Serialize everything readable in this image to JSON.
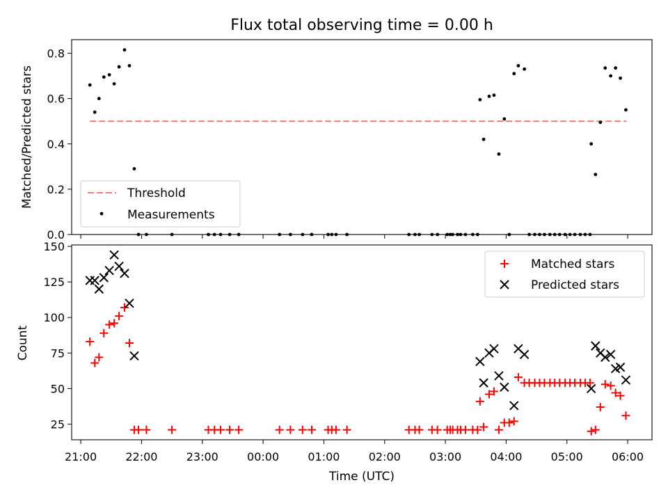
{
  "title": "Flux total observing time = 0.00 h",
  "xlabel": "Time (UTC)",
  "colors": {
    "threshold": "#f47a7a",
    "measurements": "#000000",
    "matched": "#ff0000",
    "predicted": "#000000"
  },
  "chart_data": [
    {
      "type": "scatter",
      "ylabel": "Matched/Predicted stars",
      "ylim": [
        0,
        0.86
      ],
      "yticks": [
        0.0,
        0.2,
        0.4,
        0.6,
        0.8
      ],
      "ytick_labels": [
        "0.0",
        "0.2",
        "0.4",
        "0.6",
        "0.8"
      ],
      "xlim": [
        20.85,
        30.4
      ],
      "legend_position": "lower-left",
      "threshold": {
        "name": "Threshold",
        "y": 0.5,
        "x_range": [
          21.15,
          29.98
        ],
        "style": "dashed"
      },
      "series": [
        {
          "name": "Measurements",
          "marker": "dot",
          "points": [
            [
              21.15,
              0.66
            ],
            [
              21.23,
              0.54
            ],
            [
              21.3,
              0.6
            ],
            [
              21.38,
              0.695
            ],
            [
              21.47,
              0.705
            ],
            [
              21.55,
              0.665
            ],
            [
              21.63,
              0.74
            ],
            [
              21.72,
              0.815
            ],
            [
              21.8,
              0.745
            ],
            [
              21.88,
              0.29
            ],
            [
              21.95,
              0.0
            ],
            [
              22.08,
              0.0
            ],
            [
              22.5,
              0.0
            ],
            [
              23.1,
              0.0
            ],
            [
              23.2,
              0.0
            ],
            [
              23.3,
              0.0
            ],
            [
              23.45,
              0.0
            ],
            [
              23.6,
              0.0
            ],
            [
              24.27,
              0.0
            ],
            [
              24.45,
              0.0
            ],
            [
              24.65,
              0.0
            ],
            [
              24.8,
              0.0
            ],
            [
              25.07,
              0.0
            ],
            [
              25.13,
              0.0
            ],
            [
              25.2,
              0.0
            ],
            [
              25.38,
              0.0
            ],
            [
              26.4,
              0.0
            ],
            [
              26.5,
              0.0
            ],
            [
              26.57,
              0.0
            ],
            [
              26.78,
              0.0
            ],
            [
              26.87,
              0.0
            ],
            [
              27.03,
              0.0
            ],
            [
              27.08,
              0.0
            ],
            [
              27.12,
              0.0
            ],
            [
              27.2,
              0.0
            ],
            [
              27.25,
              0.0
            ],
            [
              27.33,
              0.0
            ],
            [
              27.45,
              0.0
            ],
            [
              27.53,
              0.0
            ],
            [
              27.57,
              0.595
            ],
            [
              27.63,
              0.42
            ],
            [
              27.72,
              0.61
            ],
            [
              27.8,
              0.615
            ],
            [
              27.88,
              0.355
            ],
            [
              27.97,
              0.51
            ],
            [
              28.05,
              0.0
            ],
            [
              28.13,
              0.71
            ],
            [
              28.2,
              0.745
            ],
            [
              28.3,
              0.73
            ],
            [
              28.38,
              0.0
            ],
            [
              28.47,
              0.0
            ],
            [
              28.55,
              0.0
            ],
            [
              28.63,
              0.0
            ],
            [
              28.72,
              0.0
            ],
            [
              28.8,
              0.0
            ],
            [
              28.88,
              0.0
            ],
            [
              28.97,
              0.0
            ],
            [
              29.05,
              0.0
            ],
            [
              29.13,
              0.0
            ],
            [
              29.22,
              0.0
            ],
            [
              29.3,
              0.0
            ],
            [
              29.38,
              0.0
            ],
            [
              29.4,
              0.4
            ],
            [
              29.47,
              0.265
            ],
            [
              29.55,
              0.495
            ],
            [
              29.63,
              0.735
            ],
            [
              29.72,
              0.7
            ],
            [
              29.8,
              0.735
            ],
            [
              29.88,
              0.69
            ],
            [
              29.97,
              0.55
            ]
          ]
        }
      ]
    },
    {
      "type": "scatter",
      "ylabel": "Count",
      "ylim": [
        14,
        151
      ],
      "yticks": [
        25,
        50,
        75,
        100,
        125,
        150
      ],
      "ytick_labels": [
        "25",
        "50",
        "75",
        "100",
        "125",
        "150"
      ],
      "xlim": [
        20.85,
        30.4
      ],
      "xticks": [
        21,
        22,
        23,
        24,
        25,
        26,
        27,
        28,
        29,
        30
      ],
      "xtick_labels": [
        "21:00",
        "22:00",
        "23:00",
        "00:00",
        "01:00",
        "02:00",
        "03:00",
        "04:00",
        "05:00",
        "06:00"
      ],
      "legend_position": "upper-right",
      "series": [
        {
          "name": "Matched stars",
          "marker": "plus",
          "points": [
            [
              21.15,
              83
            ],
            [
              21.23,
              68
            ],
            [
              21.3,
              72
            ],
            [
              21.38,
              89
            ],
            [
              21.47,
              95
            ],
            [
              21.55,
              96
            ],
            [
              21.63,
              101
            ],
            [
              21.72,
              107
            ],
            [
              21.8,
              82
            ],
            [
              21.88,
              21
            ],
            [
              21.95,
              21
            ],
            [
              22.08,
              21
            ],
            [
              22.5,
              21
            ],
            [
              23.1,
              21
            ],
            [
              23.2,
              21
            ],
            [
              23.3,
              21
            ],
            [
              23.45,
              21
            ],
            [
              23.6,
              21
            ],
            [
              24.27,
              21
            ],
            [
              24.45,
              21
            ],
            [
              24.65,
              21
            ],
            [
              24.8,
              21
            ],
            [
              25.07,
              21
            ],
            [
              25.13,
              21
            ],
            [
              25.2,
              21
            ],
            [
              25.38,
              21
            ],
            [
              26.4,
              21
            ],
            [
              26.5,
              21
            ],
            [
              26.57,
              21
            ],
            [
              26.78,
              21
            ],
            [
              26.87,
              21
            ],
            [
              27.03,
              21
            ],
            [
              27.08,
              21
            ],
            [
              27.12,
              21
            ],
            [
              27.2,
              21
            ],
            [
              27.25,
              21
            ],
            [
              27.33,
              21
            ],
            [
              27.45,
              21
            ],
            [
              27.53,
              21
            ],
            [
              27.57,
              41
            ],
            [
              27.63,
              23
            ],
            [
              27.72,
              46
            ],
            [
              27.8,
              48
            ],
            [
              27.88,
              21
            ],
            [
              27.97,
              26
            ],
            [
              28.05,
              26
            ],
            [
              28.13,
              27
            ],
            [
              28.2,
              58
            ],
            [
              28.3,
              54
            ],
            [
              28.38,
              54
            ],
            [
              28.47,
              54
            ],
            [
              28.55,
              54
            ],
            [
              28.63,
              54
            ],
            [
              28.72,
              54
            ],
            [
              28.8,
              54
            ],
            [
              28.88,
              54
            ],
            [
              28.97,
              54
            ],
            [
              29.05,
              54
            ],
            [
              29.13,
              54
            ],
            [
              29.22,
              54
            ],
            [
              29.3,
              54
            ],
            [
              29.38,
              54
            ],
            [
              29.4,
              20
            ],
            [
              29.47,
              21
            ],
            [
              29.55,
              37
            ],
            [
              29.63,
              53
            ],
            [
              29.72,
              52
            ],
            [
              29.8,
              47
            ],
            [
              29.88,
              45
            ],
            [
              29.97,
              31
            ]
          ]
        },
        {
          "name": "Predicted stars",
          "marker": "x",
          "points": [
            [
              21.15,
              126
            ],
            [
              21.23,
              126
            ],
            [
              21.3,
              120
            ],
            [
              21.38,
              128
            ],
            [
              21.47,
              133
            ],
            [
              21.55,
              144
            ],
            [
              21.63,
              136
            ],
            [
              21.72,
              131
            ],
            [
              21.8,
              110
            ],
            [
              21.88,
              73
            ],
            [
              27.57,
              69
            ],
            [
              27.63,
              54
            ],
            [
              27.72,
              75
            ],
            [
              27.8,
              78
            ],
            [
              27.88,
              59
            ],
            [
              27.97,
              51
            ],
            [
              28.13,
              38
            ],
            [
              28.2,
              78
            ],
            [
              28.3,
              74
            ],
            [
              29.4,
              50
            ],
            [
              29.47,
              80
            ],
            [
              29.55,
              75
            ],
            [
              29.63,
              72
            ],
            [
              29.72,
              74
            ],
            [
              29.8,
              64
            ],
            [
              29.88,
              65
            ],
            [
              29.97,
              56
            ]
          ]
        }
      ]
    }
  ]
}
